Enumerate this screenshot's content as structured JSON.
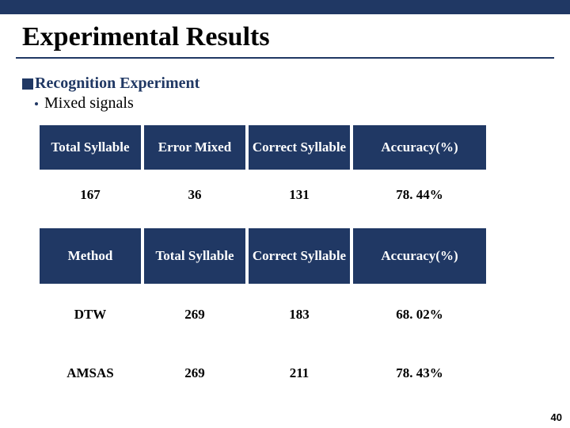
{
  "title": "Experimental Results",
  "bullet1": "Recognition Experiment",
  "bullet2": "Mixed signals",
  "table1": {
    "headers": [
      "Total Syllable",
      "Error Mixed",
      "Correct Syllable",
      "Accuracy(%)"
    ],
    "row": [
      "167",
      "36",
      "131",
      "78. 44%"
    ]
  },
  "table2": {
    "headers": [
      "Method",
      "Total Syllable",
      "Correct Syllable",
      "Accuracy(%)"
    ],
    "rows": [
      [
        "DTW",
        "269",
        "183",
        "68. 02%"
      ],
      [
        "AMSAS",
        "269",
        "211",
        "78. 43%"
      ]
    ]
  },
  "page_number": "40",
  "colors": {
    "brand": "#203864",
    "bg": "#ffffff",
    "text": "#000000",
    "header_text": "#ffffff"
  }
}
